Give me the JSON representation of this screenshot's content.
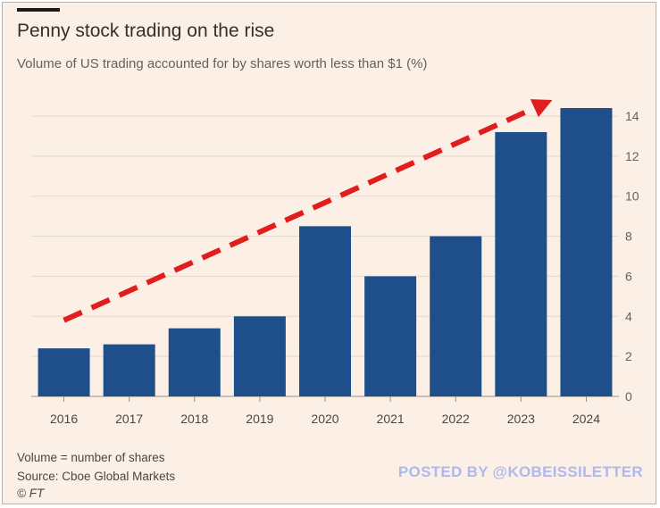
{
  "header": {
    "title": "Penny stock trading on the rise",
    "subtitle": "Volume of US trading accounted for by shares worth less than $1 (%)"
  },
  "footer": {
    "note": "Volume = number of shares",
    "source": "Source: Cboe Global Markets",
    "copyright": "© FT"
  },
  "watermark": "POSTED BY @KOBEISSILETTER",
  "chart_data": {
    "type": "bar",
    "categories": [
      "2016",
      "2017",
      "2018",
      "2019",
      "2020",
      "2021",
      "2022",
      "2023",
      "2024"
    ],
    "values": [
      2.4,
      2.6,
      3.4,
      4.0,
      8.5,
      6.0,
      8.0,
      13.2,
      14.4
    ],
    "ylim": [
      0,
      14
    ],
    "yticks": [
      0,
      2,
      4,
      6,
      8,
      10,
      12,
      14
    ],
    "grid": true,
    "y_axis_side": "right",
    "colors": {
      "bar": "#1e4f8a",
      "grid": "#e3d8ce",
      "trend_arrow": "#e01e1e"
    },
    "annotation": {
      "type": "dashed-trend-arrow",
      "from": [
        "2016",
        3.8
      ],
      "to": [
        "2024",
        14.8
      ]
    }
  }
}
